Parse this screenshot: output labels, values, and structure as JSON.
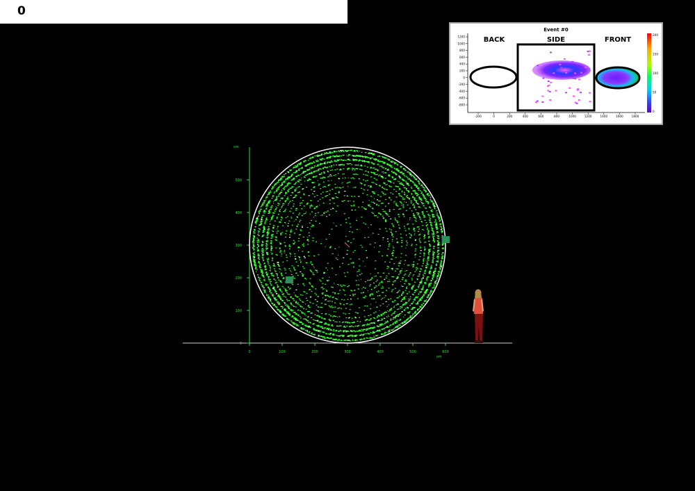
{
  "counter": "0",
  "inset": {
    "title": "Event #0",
    "labels": {
      "back": "BACK",
      "side": "SIDE",
      "front": "FRONT"
    },
    "y_ticks": [
      "1200",
      "1000",
      "800",
      "600",
      "400",
      "200",
      "0",
      "-200",
      "-400",
      "-600",
      "-800"
    ],
    "x_ticks": [
      "-200",
      "0",
      "200",
      "400",
      "600",
      "800",
      "1000",
      "1200",
      "1400",
      "1600",
      "1800"
    ],
    "colorbar_ticks": [
      "200",
      "150",
      "100",
      "50",
      "0"
    ],
    "colors": {
      "frame": "#a7a7a7",
      "outline": "#000000"
    }
  },
  "detector": {
    "y_axis_ticks": [
      "0",
      "100",
      "200",
      "300",
      "400",
      "500"
    ],
    "x_axis_ticks": [
      "0",
      "100",
      "200",
      "300",
      "400",
      "500",
      "600"
    ],
    "axis_unit": "cm",
    "colors": {
      "hits": "#33ff33",
      "axis": "#2ee62e",
      "ring": "#ffffff",
      "pmt_box": "#2f8f5a"
    }
  }
}
